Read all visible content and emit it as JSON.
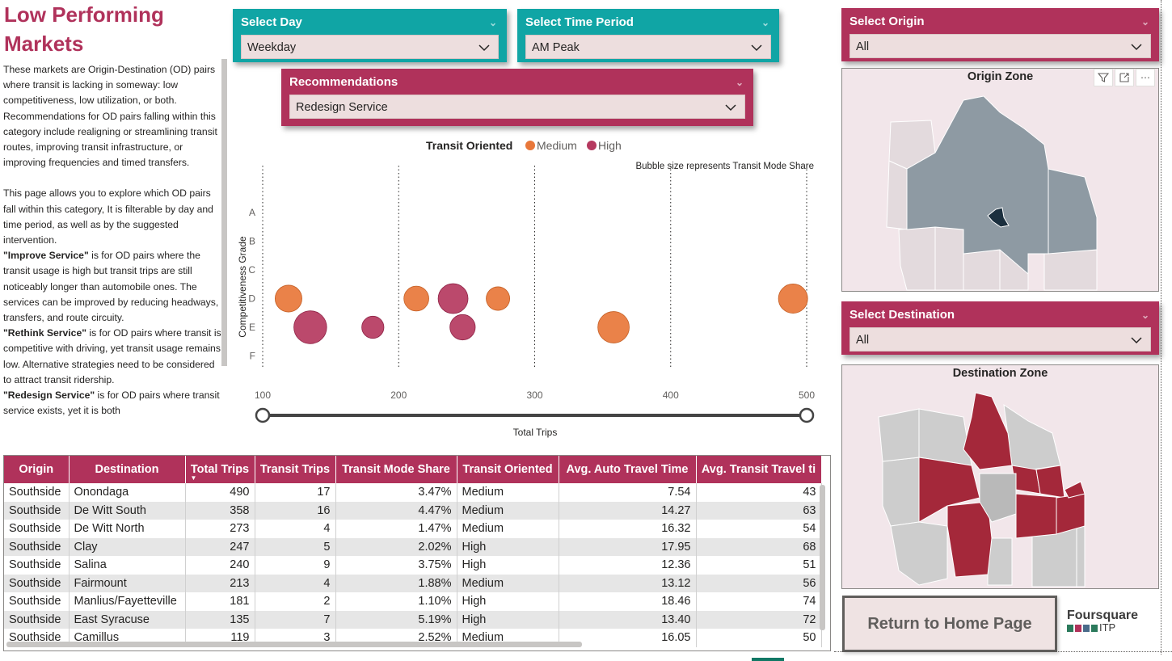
{
  "page": {
    "title": "Low Performing Markets",
    "description": {
      "intro": "These markets are Origin-Destination (OD) pairs where transit is lacking in someway: low competitiveness, low utilization, or both. Recommendations for OD pairs falling within this category include realigning or streamlining transit routes, improving transit infrastructure, or improving frequencies and timed transfers.",
      "explore": "This page allows you to explore which OD pairs fall within this category, It is filterable by day and time period, as well as by the suggested intervention.",
      "improve_title": "\"Improve Service\"",
      "improve_text": " is for OD pairs where the transit usage is high but transit trips are still noticeably longer than automobile ones. The services can be improved by reducing headways, transfers, and route circuity.",
      "rethink_title": "\"Rethink Service\"",
      "rethink_text": " is for OD pairs where transit is competitive with driving, yet transit usage remains low. Alternative strategies need to be considered to attract transit ridership.",
      "redesign_title": "\"Redesign Service\"",
      "redesign_text": " is for OD pairs where transit service exists, yet it is both"
    }
  },
  "slicers": {
    "day": {
      "title": "Select Day",
      "value": "Weekday"
    },
    "time": {
      "title": "Select Time Period",
      "value": "AM Peak"
    },
    "recommendations": {
      "title": "Recommendations",
      "value": "Redesign Service"
    },
    "origin": {
      "title": "Select Origin",
      "value": "All"
    },
    "destination": {
      "title": "Select Destination",
      "value": "All"
    }
  },
  "maps": {
    "origin_title": "Origin Zone",
    "destination_title": "Destination Zone"
  },
  "buttons": {
    "home": "Return to Home Page"
  },
  "logo": {
    "line1": "Foursquare",
    "line2": "ITP"
  },
  "colors": {
    "accent": "#b0325b",
    "teal": "#10a5a5",
    "medium": "#e8773a",
    "high": "#b5395f",
    "map_gray": "#8e9aa3",
    "map_red": "#a4283a"
  },
  "chart_data": {
    "type": "scatter",
    "legend_title": "Transit Oriented",
    "legend": [
      {
        "name": "Medium",
        "color": "#e8773a"
      },
      {
        "name": "High",
        "color": "#b5395f"
      }
    ],
    "note": "Bubble size represents Transit Mode Share",
    "xlabel": "Total Trips",
    "ylabel": "Competitiveness Grade",
    "xlim": [
      100,
      500
    ],
    "xticks": [
      "100",
      "200",
      "300",
      "400",
      "500"
    ],
    "ycategories": [
      "A",
      "B",
      "C",
      "D",
      "E",
      "F"
    ],
    "points": [
      {
        "x": 490,
        "y": "D",
        "size": 3.47,
        "series": "Medium"
      },
      {
        "x": 358,
        "y": "E",
        "size": 4.47,
        "series": "Medium"
      },
      {
        "x": 273,
        "y": "D",
        "size": 1.47,
        "series": "Medium"
      },
      {
        "x": 247,
        "y": "E",
        "size": 2.02,
        "series": "High"
      },
      {
        "x": 240,
        "y": "D",
        "size": 3.75,
        "series": "High"
      },
      {
        "x": 213,
        "y": "D",
        "size": 1.88,
        "series": "Medium"
      },
      {
        "x": 181,
        "y": "E",
        "size": 1.1,
        "series": "High"
      },
      {
        "x": 135,
        "y": "E",
        "size": 5.19,
        "series": "High"
      },
      {
        "x": 119,
        "y": "D",
        "size": 2.52,
        "series": "Medium"
      }
    ],
    "slider": {
      "min": 100,
      "max": 500
    }
  },
  "table": {
    "columns": [
      "Origin",
      "Destination",
      "Total Trips",
      "Transit Trips",
      "Transit Mode Share",
      "Transit Oriented",
      "Avg. Auto Travel Time",
      "Avg. Transit Travel ti"
    ],
    "rows": [
      [
        "Southside",
        "Onondaga",
        "490",
        "17",
        "3.47%",
        "Medium",
        "7.54",
        "43"
      ],
      [
        "Southside",
        "De Witt South",
        "358",
        "16",
        "4.47%",
        "Medium",
        "14.27",
        "63"
      ],
      [
        "Southside",
        "De Witt North",
        "273",
        "4",
        "1.47%",
        "Medium",
        "16.32",
        "54"
      ],
      [
        "Southside",
        "Clay",
        "247",
        "5",
        "2.02%",
        "High",
        "17.95",
        "68"
      ],
      [
        "Southside",
        "Salina",
        "240",
        "9",
        "3.75%",
        "High",
        "12.36",
        "51"
      ],
      [
        "Southside",
        "Fairmount",
        "213",
        "4",
        "1.88%",
        "Medium",
        "13.12",
        "56"
      ],
      [
        "Southside",
        "Manlius/Fayetteville",
        "181",
        "2",
        "1.10%",
        "High",
        "18.46",
        "74"
      ],
      [
        "Southside",
        "East Syracuse",
        "135",
        "7",
        "5.19%",
        "High",
        "13.40",
        "72"
      ],
      [
        "Southside",
        "Camillus",
        "119",
        "3",
        "2.52%",
        "Medium",
        "16.05",
        "50"
      ]
    ]
  }
}
